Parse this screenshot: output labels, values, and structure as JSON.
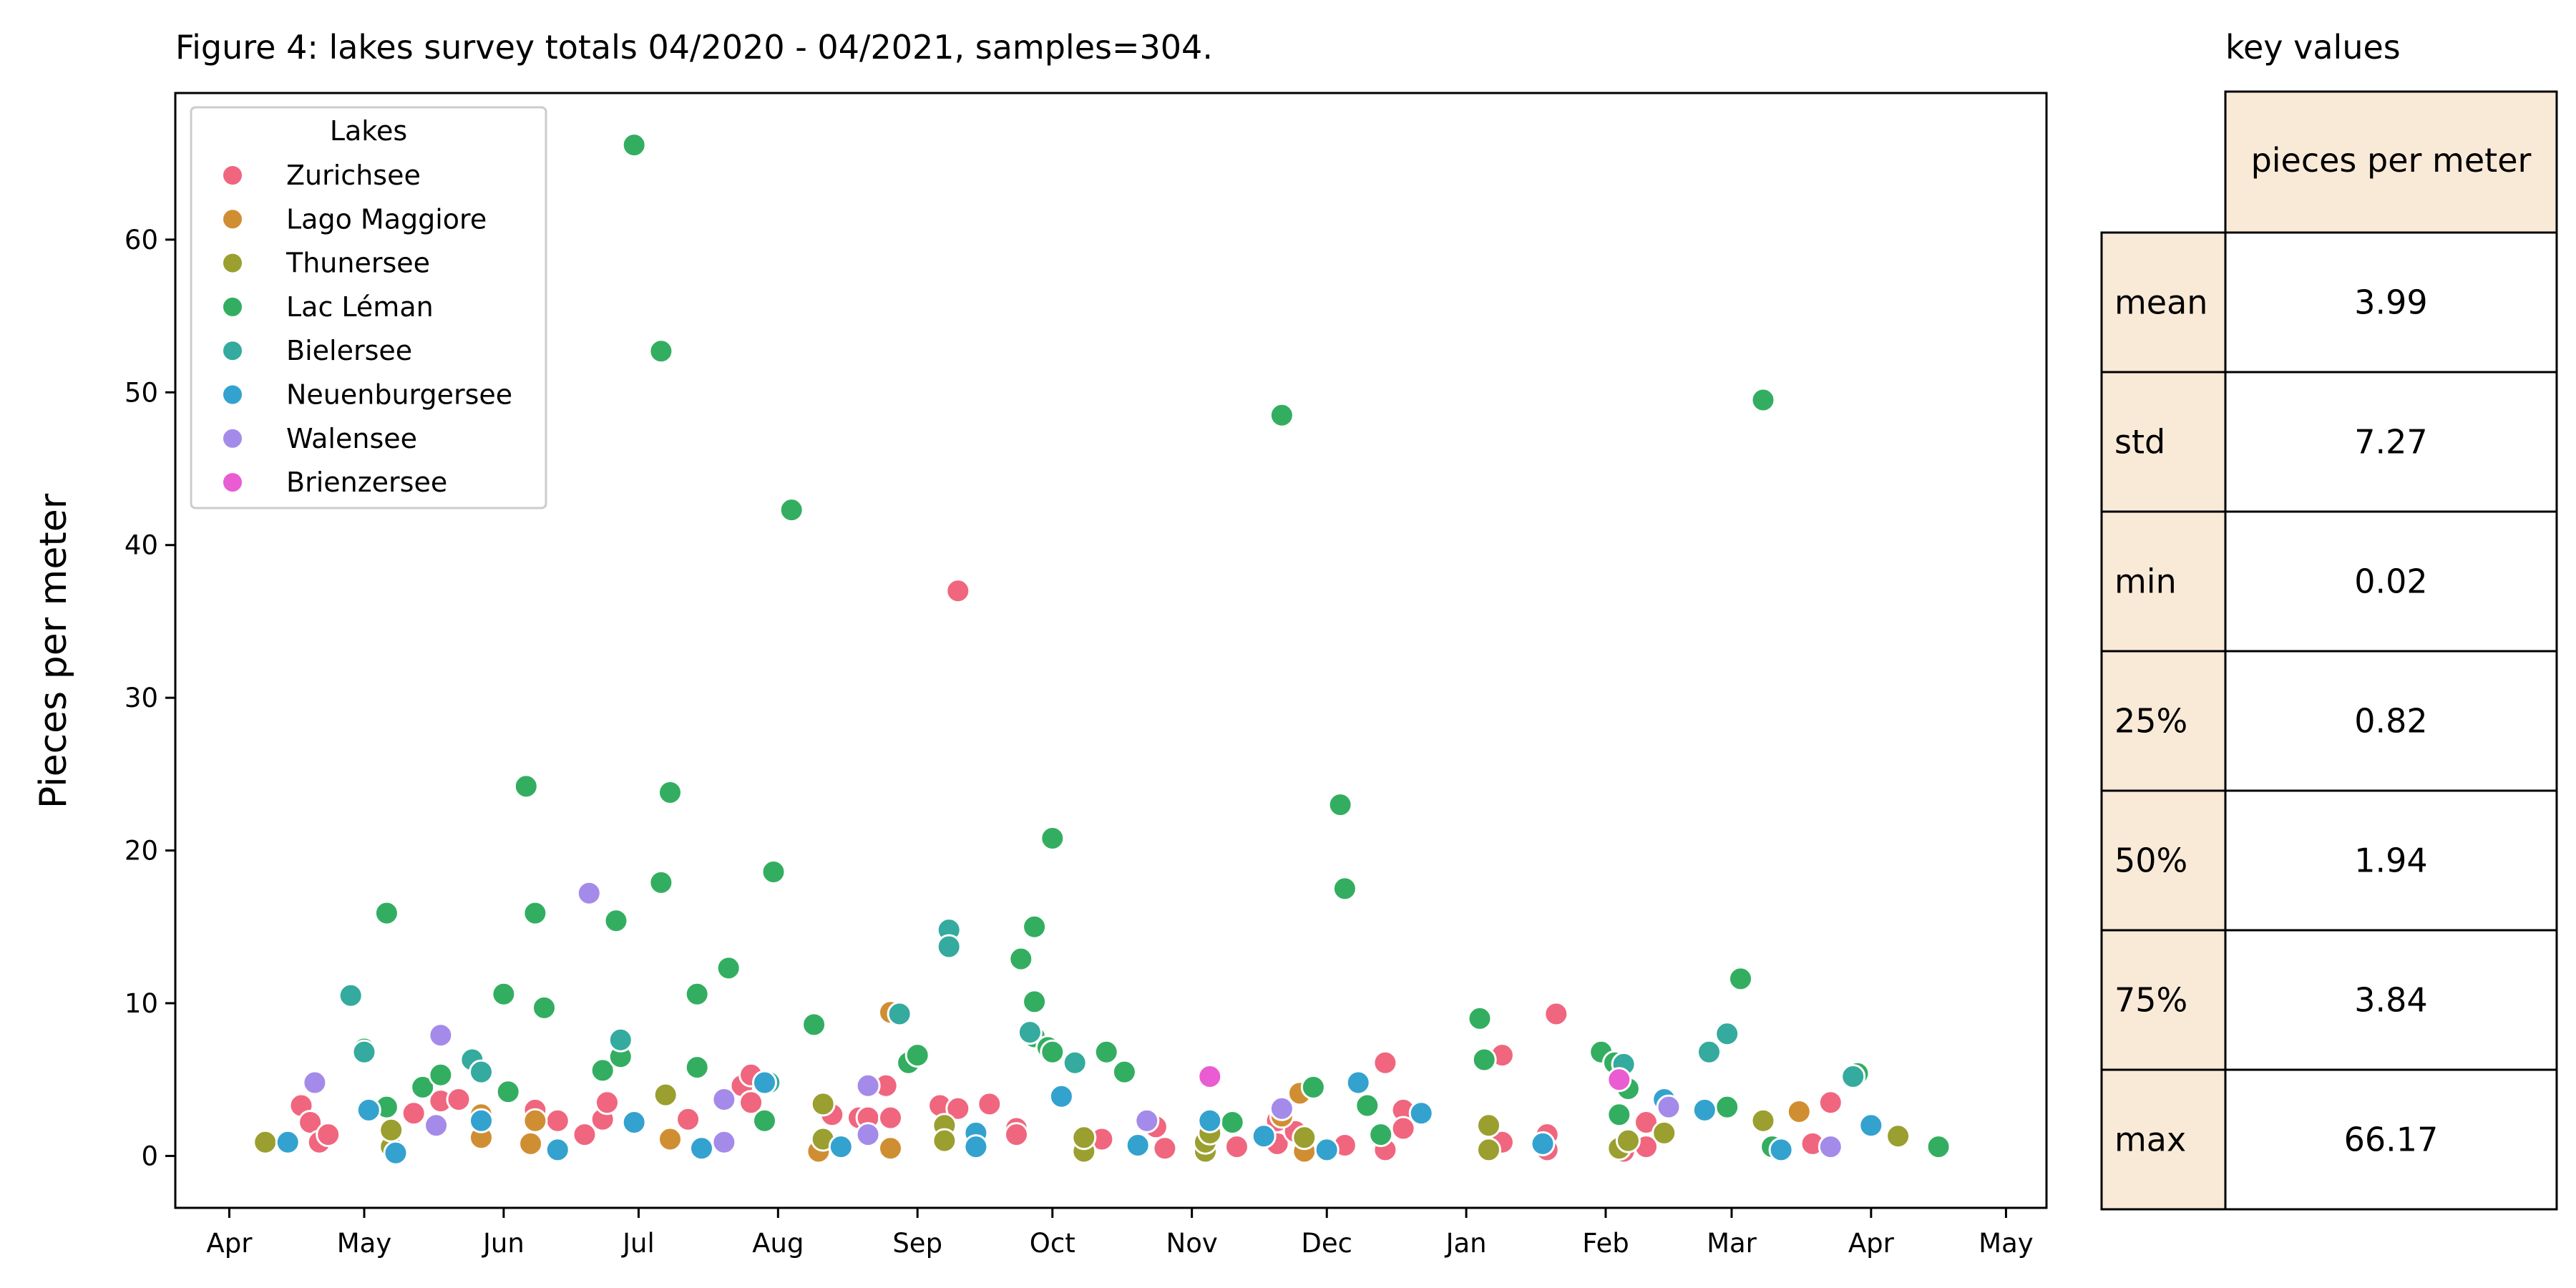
{
  "figure": {
    "title": "Figure 4: lakes survey totals 04/2020 - 04/2021, samples=304."
  },
  "chart_data": {
    "type": "scatter",
    "ylabel": "Pieces per meter",
    "xlabel": "",
    "ylim": [
      -3.4,
      69.6
    ],
    "x_axis": {
      "type": "date",
      "range": [
        "2020-03-20",
        "2021-05-10"
      ],
      "ticks": [
        {
          "date": "2020-04-01",
          "label": "Apr"
        },
        {
          "date": "2020-05-01",
          "label": "May"
        },
        {
          "date": "2020-06-01",
          "label": "Jun"
        },
        {
          "date": "2020-07-01",
          "label": "Jul"
        },
        {
          "date": "2020-08-01",
          "label": "Aug"
        },
        {
          "date": "2020-09-01",
          "label": "Sep"
        },
        {
          "date": "2020-10-01",
          "label": "Oct"
        },
        {
          "date": "2020-11-01",
          "label": "Nov"
        },
        {
          "date": "2020-12-01",
          "label": "Dec"
        },
        {
          "date": "2021-01-01",
          "label": "Jan"
        },
        {
          "date": "2021-02-01",
          "label": "Feb"
        },
        {
          "date": "2021-03-01",
          "label": "Mar"
        },
        {
          "date": "2021-04-01",
          "label": "Apr"
        },
        {
          "date": "2021-05-01",
          "label": "May"
        }
      ]
    },
    "y_ticks": [
      0,
      10,
      20,
      30,
      40,
      50,
      60
    ],
    "grid": false,
    "legend": {
      "title": "Lakes",
      "position": "top-left"
    },
    "series": [
      {
        "name": "Zurichsee",
        "color": "#f0667e",
        "points": [
          [
            "2020-04-17",
            3.3
          ],
          [
            "2020-04-19",
            2.2
          ],
          [
            "2020-04-21",
            0.9
          ],
          [
            "2020-04-23",
            1.4
          ],
          [
            "2020-05-12",
            2.8
          ],
          [
            "2020-05-18",
            3.6
          ],
          [
            "2020-05-22",
            3.7
          ],
          [
            "2020-06-08",
            3.0
          ],
          [
            "2020-06-13",
            2.3
          ],
          [
            "2020-06-19",
            1.4
          ],
          [
            "2020-06-23",
            2.4
          ],
          [
            "2020-06-24",
            3.5
          ],
          [
            "2020-07-12",
            2.4
          ],
          [
            "2020-07-24",
            4.6
          ],
          [
            "2020-07-26",
            5.3
          ],
          [
            "2020-07-26",
            3.5
          ],
          [
            "2020-08-13",
            2.7
          ],
          [
            "2020-08-19",
            2.5
          ],
          [
            "2020-08-21",
            2.5
          ],
          [
            "2020-08-25",
            4.6
          ],
          [
            "2020-08-26",
            2.5
          ],
          [
            "2020-09-06",
            3.3
          ],
          [
            "2020-09-10",
            37.0
          ],
          [
            "2020-09-10",
            3.1
          ],
          [
            "2020-09-17",
            3.4
          ],
          [
            "2020-09-23",
            1.8
          ],
          [
            "2020-09-23",
            1.4
          ],
          [
            "2020-10-12",
            1.1
          ],
          [
            "2020-10-24",
            1.9
          ],
          [
            "2020-10-26",
            0.5
          ],
          [
            "2020-11-11",
            0.6
          ],
          [
            "2020-11-20",
            0.8
          ],
          [
            "2020-11-20",
            2.3
          ],
          [
            "2020-11-24",
            1.6
          ],
          [
            "2020-12-05",
            0.7
          ],
          [
            "2020-12-14",
            6.1
          ],
          [
            "2020-12-14",
            0.4
          ],
          [
            "2020-12-18",
            3.0
          ],
          [
            "2020-12-18",
            1.8
          ],
          [
            "2021-01-09",
            6.6
          ],
          [
            "2021-01-09",
            0.9
          ],
          [
            "2021-01-19",
            1.4
          ],
          [
            "2021-01-19",
            0.4
          ],
          [
            "2021-01-21",
            9.3
          ],
          [
            "2021-02-05",
            0.3
          ],
          [
            "2021-02-10",
            2.2
          ],
          [
            "2021-02-10",
            0.6
          ],
          [
            "2021-03-19",
            0.8
          ],
          [
            "2021-03-23",
            3.5
          ]
        ]
      },
      {
        "name": "Lago Maggiore",
        "color": "#d08e33",
        "points": [
          [
            "2020-05-27",
            2.7
          ],
          [
            "2020-05-27",
            1.2
          ],
          [
            "2020-06-07",
            0.8
          ],
          [
            "2020-06-08",
            2.3
          ],
          [
            "2020-07-08",
            1.1
          ],
          [
            "2020-08-10",
            0.3
          ],
          [
            "2020-08-26",
            9.4
          ],
          [
            "2020-08-26",
            0.5
          ],
          [
            "2020-11-21",
            2.6
          ],
          [
            "2020-11-25",
            4.1
          ],
          [
            "2020-11-26",
            0.3
          ],
          [
            "2021-03-16",
            2.9
          ]
        ]
      },
      {
        "name": "Thunersee",
        "color": "#9a9f2f",
        "points": [
          [
            "2020-04-09",
            0.9
          ],
          [
            "2020-05-07",
            0.6
          ],
          [
            "2020-05-07",
            1.7
          ],
          [
            "2020-07-07",
            4.0
          ],
          [
            "2020-08-11",
            3.4
          ],
          [
            "2020-08-11",
            1.1
          ],
          [
            "2020-09-07",
            2.0
          ],
          [
            "2020-09-07",
            1.0
          ],
          [
            "2020-10-08",
            0.3
          ],
          [
            "2020-10-08",
            1.2
          ],
          [
            "2020-11-04",
            0.3
          ],
          [
            "2020-11-04",
            0.9
          ],
          [
            "2020-11-05",
            1.5
          ],
          [
            "2020-11-26",
            1.2
          ],
          [
            "2021-01-06",
            0.4
          ],
          [
            "2021-01-06",
            2.0
          ],
          [
            "2021-02-04",
            0.5
          ],
          [
            "2021-02-06",
            1.0
          ],
          [
            "2021-02-14",
            1.5
          ],
          [
            "2021-03-08",
            2.3
          ],
          [
            "2021-04-07",
            1.3
          ]
        ]
      },
      {
        "name": "Lac Léman",
        "color": "#33ae60",
        "points": [
          [
            "2020-05-06",
            15.9
          ],
          [
            "2020-05-01",
            7.0
          ],
          [
            "2020-05-06",
            3.2
          ],
          [
            "2020-05-14",
            4.5
          ],
          [
            "2020-05-18",
            5.3
          ],
          [
            "2020-06-01",
            10.6
          ],
          [
            "2020-06-02",
            4.2
          ],
          [
            "2020-06-06",
            24.2
          ],
          [
            "2020-06-08",
            15.9
          ],
          [
            "2020-06-10",
            9.7
          ],
          [
            "2020-06-23",
            5.6
          ],
          [
            "2020-06-26",
            15.4
          ],
          [
            "2020-06-27",
            6.5
          ],
          [
            "2020-06-30",
            66.2
          ],
          [
            "2020-07-06",
            52.7
          ],
          [
            "2020-07-06",
            17.9
          ],
          [
            "2020-07-08",
            23.8
          ],
          [
            "2020-07-14",
            10.6
          ],
          [
            "2020-07-14",
            5.8
          ],
          [
            "2020-07-21",
            12.3
          ],
          [
            "2020-07-31",
            18.6
          ],
          [
            "2020-08-04",
            42.3
          ],
          [
            "2020-07-29",
            2.3
          ],
          [
            "2020-08-09",
            8.6
          ],
          [
            "2020-08-30",
            6.1
          ],
          [
            "2020-09-01",
            6.6
          ],
          [
            "2020-09-24",
            12.9
          ],
          [
            "2020-09-27",
            15.0
          ],
          [
            "2020-09-27",
            10.1
          ],
          [
            "2020-09-27",
            7.8
          ],
          [
            "2020-09-30",
            7.1
          ],
          [
            "2020-10-01",
            20.8
          ],
          [
            "2020-10-01",
            6.8
          ],
          [
            "2020-10-13",
            6.8
          ],
          [
            "2020-10-17",
            5.5
          ],
          [
            "2020-11-10",
            2.2
          ],
          [
            "2020-11-21",
            48.5
          ],
          [
            "2020-11-28",
            4.5
          ],
          [
            "2020-12-04",
            23.0
          ],
          [
            "2020-12-05",
            17.5
          ],
          [
            "2020-12-10",
            3.3
          ],
          [
            "2020-12-13",
            1.4
          ],
          [
            "2021-01-04",
            9.0
          ],
          [
            "2021-01-05",
            6.3
          ],
          [
            "2021-01-31",
            6.8
          ],
          [
            "2021-02-03",
            6.1
          ],
          [
            "2021-02-06",
            4.4
          ],
          [
            "2021-02-04",
            2.7
          ],
          [
            "2021-02-28",
            3.2
          ],
          [
            "2021-03-03",
            11.6
          ],
          [
            "2021-03-08",
            49.5
          ],
          [
            "2021-03-10",
            0.6
          ],
          [
            "2021-03-29",
            5.4
          ],
          [
            "2021-04-16",
            0.6
          ]
        ]
      },
      {
        "name": "Bielersee",
        "color": "#35aa9e",
        "points": [
          [
            "2020-04-28",
            10.5
          ],
          [
            "2020-05-01",
            6.8
          ],
          [
            "2020-05-25",
            6.3
          ],
          [
            "2020-05-27",
            5.5
          ],
          [
            "2020-06-27",
            7.6
          ],
          [
            "2020-07-30",
            4.8
          ],
          [
            "2020-08-28",
            9.3
          ],
          [
            "2020-09-08",
            14.8
          ],
          [
            "2020-09-08",
            13.7
          ],
          [
            "2020-09-26",
            8.1
          ],
          [
            "2020-10-06",
            6.1
          ],
          [
            "2021-02-05",
            6.0
          ],
          [
            "2021-02-24",
            6.8
          ],
          [
            "2021-02-28",
            8.0
          ],
          [
            "2021-03-28",
            5.2
          ]
        ]
      },
      {
        "name": "Neuenburgersee",
        "color": "#34a2cf",
        "points": [
          [
            "2020-04-14",
            0.9
          ],
          [
            "2020-05-02",
            3.0
          ],
          [
            "2020-05-08",
            0.2
          ],
          [
            "2020-05-27",
            2.3
          ],
          [
            "2020-06-13",
            0.4
          ],
          [
            "2020-06-30",
            2.2
          ],
          [
            "2020-07-15",
            0.5
          ],
          [
            "2020-07-29",
            4.8
          ],
          [
            "2020-08-15",
            0.6
          ],
          [
            "2020-09-14",
            1.5
          ],
          [
            "2020-09-14",
            0.6
          ],
          [
            "2020-10-03",
            3.9
          ],
          [
            "2020-10-20",
            0.7
          ],
          [
            "2020-11-05",
            2.3
          ],
          [
            "2020-11-17",
            1.3
          ],
          [
            "2020-12-01",
            0.4
          ],
          [
            "2020-12-08",
            4.8
          ],
          [
            "2020-12-22",
            2.8
          ],
          [
            "2021-01-18",
            0.8
          ],
          [
            "2021-02-14",
            3.7
          ],
          [
            "2021-02-23",
            3.0
          ],
          [
            "2021-03-12",
            0.4
          ],
          [
            "2021-04-01",
            2.0
          ]
        ]
      },
      {
        "name": "Walensee",
        "color": "#a48bea",
        "points": [
          [
            "2020-04-20",
            4.8
          ],
          [
            "2020-05-18",
            7.9
          ],
          [
            "2020-05-17",
            2.0
          ],
          [
            "2020-06-20",
            17.2
          ],
          [
            "2020-07-20",
            3.7
          ],
          [
            "2020-07-20",
            0.9
          ],
          [
            "2020-08-21",
            4.6
          ],
          [
            "2020-08-21",
            1.4
          ],
          [
            "2020-10-22",
            2.3
          ],
          [
            "2020-11-21",
            3.1
          ],
          [
            "2021-02-15",
            3.2
          ],
          [
            "2021-03-23",
            0.6
          ]
        ]
      },
      {
        "name": "Brienzersee",
        "color": "#ea5cd1",
        "points": [
          [
            "2020-11-05",
            5.2
          ],
          [
            "2021-02-04",
            5.0
          ]
        ]
      }
    ]
  },
  "table": {
    "title": "key values",
    "column_header": "pieces per meter",
    "rows": [
      {
        "label": "mean",
        "value": "3.99"
      },
      {
        "label": "std",
        "value": "7.27"
      },
      {
        "label": "min",
        "value": "0.02"
      },
      {
        "label": "25%",
        "value": "0.82"
      },
      {
        "label": "50%",
        "value": "1.94"
      },
      {
        "label": "75%",
        "value": "3.84"
      },
      {
        "label": "max",
        "value": "66.17"
      }
    ],
    "header_fill": "#f9ead8"
  }
}
